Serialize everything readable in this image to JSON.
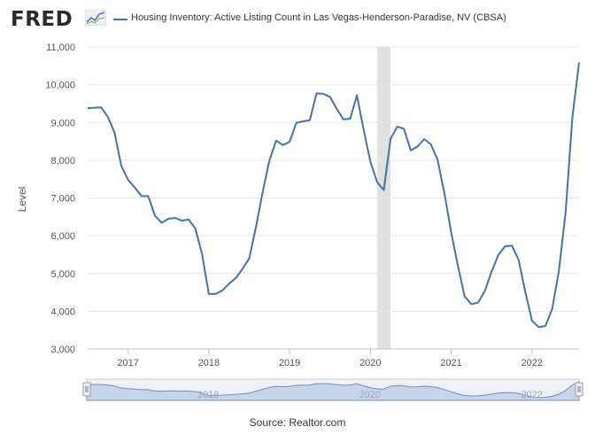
{
  "header": {
    "logo_text": "FRED",
    "logo_icon": "fred-mini-line-graph-icon",
    "legend_label": "Housing Inventory: Active Listing Count in Las Vegas-Henderson-Paradise, NV (CBSA)"
  },
  "footer": {
    "source": "Source: Realtor.com"
  },
  "colors": {
    "series": "#4572a7",
    "recession": "#e0e0e0",
    "navigator_fill": "#c6d5ea",
    "navigator_line": "#6e8fc0"
  },
  "chart_data": {
    "type": "line",
    "title": "",
    "xlabel": "",
    "ylabel": "Level",
    "ylim": [
      3000,
      11000
    ],
    "yticks": [
      3000,
      4000,
      5000,
      6000,
      7000,
      8000,
      9000,
      10000,
      11000
    ],
    "ytick_labels": [
      "3,000",
      "4,000",
      "5,000",
      "6,000",
      "7,000",
      "8,000",
      "9,000",
      "10,000",
      "11,000"
    ],
    "xlim": [
      "2016-07",
      "2022-08"
    ],
    "xticks": [
      "2017",
      "2018",
      "2019",
      "2020",
      "2021",
      "2022"
    ],
    "navigator_labels": [
      "2018",
      "2020",
      "2022"
    ],
    "grid": true,
    "recession": {
      "start": "2020-02",
      "end": "2020-04"
    },
    "series": [
      {
        "name": "Housing Inventory: Active Listing Count in Las Vegas-Henderson-Paradise, NV (CBSA)",
        "x": [
          "2016-07",
          "2016-08",
          "2016-09",
          "2016-10",
          "2016-11",
          "2016-12",
          "2017-01",
          "2017-02",
          "2017-03",
          "2017-04",
          "2017-05",
          "2017-06",
          "2017-07",
          "2017-08",
          "2017-09",
          "2017-10",
          "2017-11",
          "2017-12",
          "2018-01",
          "2018-02",
          "2018-03",
          "2018-04",
          "2018-05",
          "2018-06",
          "2018-07",
          "2018-08",
          "2018-09",
          "2018-10",
          "2018-11",
          "2018-12",
          "2019-01",
          "2019-02",
          "2019-03",
          "2019-04",
          "2019-05",
          "2019-06",
          "2019-07",
          "2019-08",
          "2019-09",
          "2019-10",
          "2019-11",
          "2019-12",
          "2020-01",
          "2020-02",
          "2020-03",
          "2020-04",
          "2020-05",
          "2020-06",
          "2020-07",
          "2020-08",
          "2020-09",
          "2020-10",
          "2020-11",
          "2020-12",
          "2021-01",
          "2021-02",
          "2021-03",
          "2021-04",
          "2021-05",
          "2021-06",
          "2021-07",
          "2021-08",
          "2021-09",
          "2021-10",
          "2021-11",
          "2021-12",
          "2022-01",
          "2022-02",
          "2022-03",
          "2022-04",
          "2022-05",
          "2022-06",
          "2022-07",
          "2022-08"
        ],
        "values": [
          9380,
          9390,
          9400,
          9150,
          8730,
          7850,
          7480,
          7280,
          7050,
          7050,
          6530,
          6340,
          6450,
          6470,
          6400,
          6430,
          6190,
          5520,
          4460,
          4460,
          4550,
          4730,
          4880,
          5120,
          5400,
          6230,
          7160,
          8000,
          8520,
          8400,
          8490,
          8990,
          9030,
          9060,
          9770,
          9760,
          9680,
          9360,
          9080,
          9100,
          9720,
          8810,
          7960,
          7420,
          7210,
          8570,
          8890,
          8830,
          8260,
          8360,
          8560,
          8420,
          8000,
          7130,
          6100,
          5200,
          4390,
          4190,
          4230,
          4540,
          5050,
          5490,
          5720,
          5740,
          5370,
          4520,
          3750,
          3580,
          3610,
          4060,
          5060,
          6620,
          9120,
          10590
        ]
      }
    ]
  }
}
